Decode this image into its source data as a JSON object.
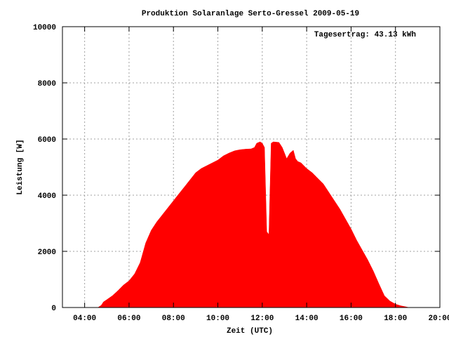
{
  "colors": {
    "area": "#ff0000",
    "grid": "#a0a0a0",
    "axis": "#000000",
    "background": "#ffffff"
  },
  "chart_data": {
    "type": "area",
    "title": "Produktion Solaranlage Serto-Gressel 2009-05-19",
    "annotation": "Tagesertrag: 43.13 kWh",
    "xlabel": "Zeit (UTC)",
    "ylabel": "Leistung [W]",
    "x_unit": "hours UTC",
    "xlim": [
      3.0,
      20.0
    ],
    "ylim": [
      0,
      10000
    ],
    "x_tick_labels": [
      "04:00",
      "06:00",
      "08:00",
      "10:00",
      "12:00",
      "14:00",
      "16:00",
      "18:00",
      "20:00"
    ],
    "x_tick_values": [
      4,
      6,
      8,
      10,
      12,
      14,
      16,
      18,
      20
    ],
    "y_tick_labels": [
      "0",
      "2000",
      "4000",
      "6000",
      "8000",
      "10000"
    ],
    "y_tick_values": [
      0,
      2000,
      4000,
      6000,
      8000,
      10000
    ],
    "grid": true,
    "series": [
      {
        "points": [
          [
            4.6,
            0
          ],
          [
            4.75,
            80
          ],
          [
            4.85,
            200
          ],
          [
            5.0,
            280
          ],
          [
            5.25,
            420
          ],
          [
            5.5,
            600
          ],
          [
            5.75,
            800
          ],
          [
            6.0,
            950
          ],
          [
            6.25,
            1200
          ],
          [
            6.5,
            1600
          ],
          [
            6.75,
            2300
          ],
          [
            7.0,
            2750
          ],
          [
            7.25,
            3050
          ],
          [
            7.5,
            3300
          ],
          [
            7.75,
            3550
          ],
          [
            8.0,
            3800
          ],
          [
            8.25,
            4050
          ],
          [
            8.5,
            4300
          ],
          [
            8.75,
            4550
          ],
          [
            9.0,
            4800
          ],
          [
            9.25,
            4950
          ],
          [
            9.5,
            5050
          ],
          [
            9.75,
            5150
          ],
          [
            10.0,
            5250
          ],
          [
            10.25,
            5400
          ],
          [
            10.5,
            5500
          ],
          [
            10.75,
            5580
          ],
          [
            11.0,
            5620
          ],
          [
            11.25,
            5640
          ],
          [
            11.5,
            5650
          ],
          [
            11.65,
            5700
          ],
          [
            11.75,
            5850
          ],
          [
            11.9,
            5900
          ],
          [
            12.0,
            5850
          ],
          [
            12.1,
            5700
          ],
          [
            12.2,
            2700
          ],
          [
            12.3,
            2600
          ],
          [
            12.4,
            5850
          ],
          [
            12.5,
            5900
          ],
          [
            12.75,
            5880
          ],
          [
            12.9,
            5700
          ],
          [
            13.0,
            5500
          ],
          [
            13.1,
            5300
          ],
          [
            13.25,
            5500
          ],
          [
            13.4,
            5600
          ],
          [
            13.5,
            5300
          ],
          [
            13.6,
            5200
          ],
          [
            13.75,
            5150
          ],
          [
            14.0,
            4950
          ],
          [
            14.25,
            4800
          ],
          [
            14.5,
            4600
          ],
          [
            14.75,
            4400
          ],
          [
            15.0,
            4100
          ],
          [
            15.25,
            3800
          ],
          [
            15.5,
            3500
          ],
          [
            15.75,
            3150
          ],
          [
            16.0,
            2800
          ],
          [
            16.25,
            2400
          ],
          [
            16.5,
            2050
          ],
          [
            16.75,
            1700
          ],
          [
            17.0,
            1300
          ],
          [
            17.25,
            850
          ],
          [
            17.5,
            420
          ],
          [
            17.75,
            230
          ],
          [
            18.0,
            120
          ],
          [
            18.25,
            60
          ],
          [
            18.5,
            20
          ],
          [
            18.6,
            0
          ]
        ]
      }
    ]
  }
}
